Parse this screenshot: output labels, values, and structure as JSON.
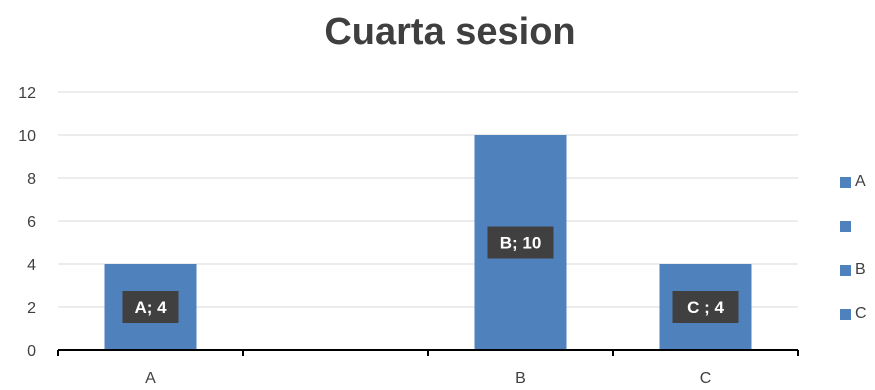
{
  "chart_data": {
    "type": "bar",
    "title": "Cuarta sesion",
    "categories": [
      "A",
      "",
      "B",
      "C"
    ],
    "values": [
      4,
      null,
      10,
      4
    ],
    "data_labels": [
      "A; 4",
      "",
      "B; 10",
      "C ; 4"
    ],
    "ylim": [
      0,
      12
    ],
    "yticks": [
      0,
      2,
      4,
      6,
      8,
      10,
      12
    ],
    "grid": true,
    "legend_position": "right",
    "legend": [
      "A",
      "",
      "B",
      "C"
    ],
    "bar_color": "#4f81bd",
    "label_bg_color": "#404040"
  }
}
